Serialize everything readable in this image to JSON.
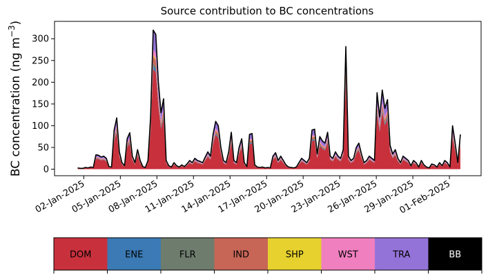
{
  "chart_data": {
    "type": "area",
    "title": "Source contribution to BC concentrations",
    "ylabel_main": "BC concentration (ng m",
    "ylabel_sup": "−3",
    "ylabel_end": ")",
    "ylim": [
      -15,
      340
    ],
    "yticks": [
      0,
      50,
      100,
      150,
      200,
      250,
      300
    ],
    "x_start_day": -0.5,
    "x_end_day": 30.9,
    "xlim": [
      -2.4,
      32.6
    ],
    "xticks": [
      {
        "day": 0,
        "label": "02-Jan-2025"
      },
      {
        "day": 3,
        "label": "05-Jan-2025"
      },
      {
        "day": 6,
        "label": "08-Jan-2025"
      },
      {
        "day": 9,
        "label": "11-Jan-2025"
      },
      {
        "day": 12,
        "label": "14-Jan-2025"
      },
      {
        "day": 15,
        "label": "17-Jan-2025"
      },
      {
        "day": 18,
        "label": "20-Jan-2025"
      },
      {
        "day": 21,
        "label": "23-Jan-2025"
      },
      {
        "day": 24,
        "label": "26-Jan-2025"
      },
      {
        "day": 27,
        "label": "29-Jan-2025"
      },
      {
        "day": 30,
        "label": "01-Feb-2025"
      }
    ],
    "total": [
      3,
      2,
      2,
      4,
      3,
      5,
      4,
      33,
      32,
      28,
      30,
      25,
      6,
      5,
      90,
      118,
      40,
      15,
      8,
      70,
      84,
      30,
      15,
      45,
      20,
      6,
      4,
      20,
      120,
      320,
      310,
      200,
      130,
      162,
      20,
      8,
      5,
      15,
      8,
      5,
      10,
      6,
      12,
      20,
      15,
      25,
      20,
      18,
      15,
      28,
      40,
      30,
      80,
      110,
      100,
      50,
      20,
      15,
      40,
      85,
      20,
      15,
      50,
      70,
      15,
      6,
      80,
      82,
      10,
      5,
      4,
      5,
      3,
      4,
      3,
      30,
      38,
      20,
      30,
      20,
      10,
      5,
      4,
      3,
      5,
      15,
      25,
      20,
      15,
      25,
      90,
      92,
      35,
      75,
      65,
      60,
      85,
      30,
      25,
      40,
      30,
      25,
      45,
      282,
      30,
      20,
      25,
      50,
      60,
      35,
      15,
      20,
      30,
      25,
      20,
      176,
      120,
      182,
      140,
      160,
      55,
      35,
      45,
      25,
      15,
      30,
      25,
      20,
      8,
      20,
      15,
      5,
      20,
      10,
      5,
      3,
      12,
      10,
      5,
      15,
      8,
      20,
      15,
      5,
      100,
      60,
      15,
      80
    ],
    "series": [
      {
        "name": "DOM",
        "color": "#c8313c",
        "fraction": 0.72
      },
      {
        "name": "ENE",
        "color": "#3b7ab4",
        "fraction": 0.02
      },
      {
        "name": "FLR",
        "color": "#6e7c6d",
        "fraction": 0.02
      },
      {
        "name": "IND",
        "color": "#c76657",
        "fraction": 0.05
      },
      {
        "name": "SHP",
        "color": "#e6d12f",
        "fraction": 0.01
      },
      {
        "name": "WST",
        "color": "#f07fbf",
        "fraction": 0.04
      },
      {
        "name": "TRA",
        "color": "#9473d8",
        "fraction": 0.14
      },
      {
        "name": "BB",
        "color": "#000000",
        "fraction": 0.0
      }
    ]
  }
}
